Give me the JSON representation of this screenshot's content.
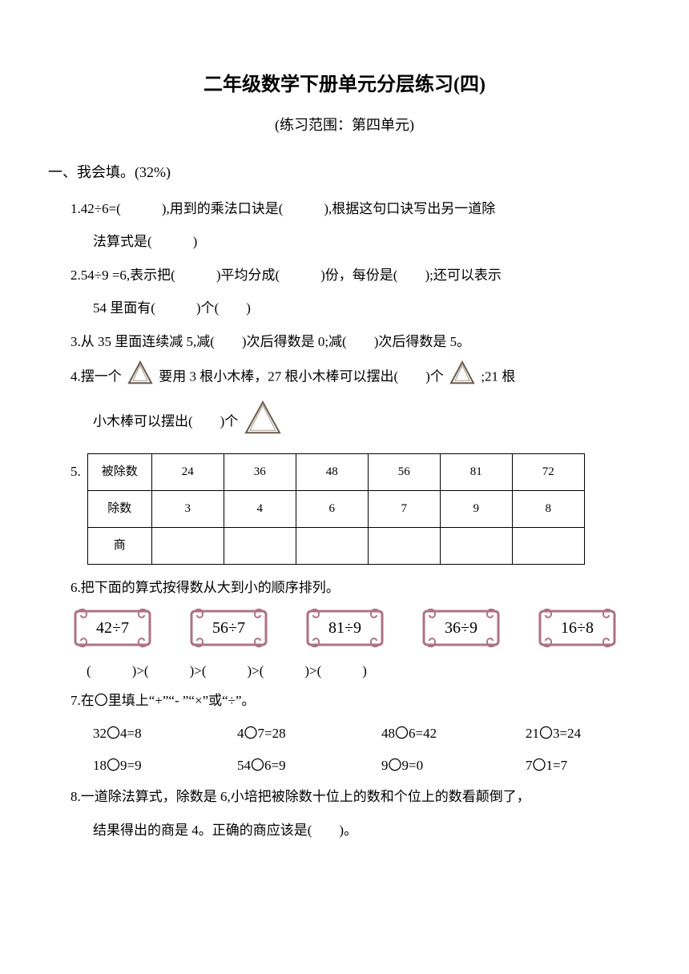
{
  "title": "二年级数学下册单元分层练习(四)",
  "subtitle": "(练习范围：第四单元)",
  "section1": {
    "heading": "一、我会填。(32%)",
    "q1_a": "1.42÷6=(   ),用到的乘法口诀是(   ),根据这句口诀写出另一道除",
    "q1_b": "法算式是(   )",
    "q2_a": "2.54÷9 =6,表示把(   )平均分成(   )份，每份是(  );还可以表示",
    "q2_b": "54 里面有(   )个(  )",
    "q3": "3.从 35 里面连续减 5,减(  )次后得数是 0;减(  )次后得数是 5。",
    "q4_a_pre": "4.摆一个",
    "q4_a_mid": "要用 3 根小木棒，27 根小木棒可以摆出(  )个",
    "q4_a_post": ";21 根",
    "q4_b_pre": "小木棒可以摆出(  )个",
    "q5_label": "5.",
    "table": {
      "headers": [
        "被除数",
        "除数",
        "商"
      ],
      "dividends": [
        "24",
        "36",
        "48",
        "56",
        "81",
        "72"
      ],
      "divisors": [
        "3",
        "4",
        "6",
        "7",
        "9",
        "8"
      ],
      "quotients": [
        "",
        "",
        "",
        "",
        "",
        ""
      ]
    },
    "q6": "6.把下面的算式按得数从大到小的顺序排列。",
    "labels": [
      "42÷7",
      "56÷7",
      "81÷9",
      "36÷9",
      "16÷8"
    ],
    "label_box": {
      "width": 105,
      "height": 54,
      "border_color": "#ad7285",
      "inner_bg": "#ffffff",
      "font_size": 20
    },
    "ordering": "(   )>(   )>(   )>(   )>(   )",
    "q7": "7.在〇里填上“+”“- ”“×”或“÷”。",
    "ops_row1": [
      "32〇4=8",
      "4〇7=28",
      "48〇6=42",
      "21〇3=24"
    ],
    "ops_row2": [
      "18〇9=9",
      "54〇6=9",
      "9〇9=0",
      "7〇1=7"
    ],
    "q8_a": "8.一道除法算式，除数是 6,小培把被除数十位上的数和个位上的数看颠倒了，",
    "q8_b": "结果得出的商是 4。正确的商应该是(  )。"
  },
  "triangle_svg": {
    "stroke": "#6b5a4a",
    "fill": "#ffffff",
    "size_small": 34,
    "size_large": 48
  }
}
